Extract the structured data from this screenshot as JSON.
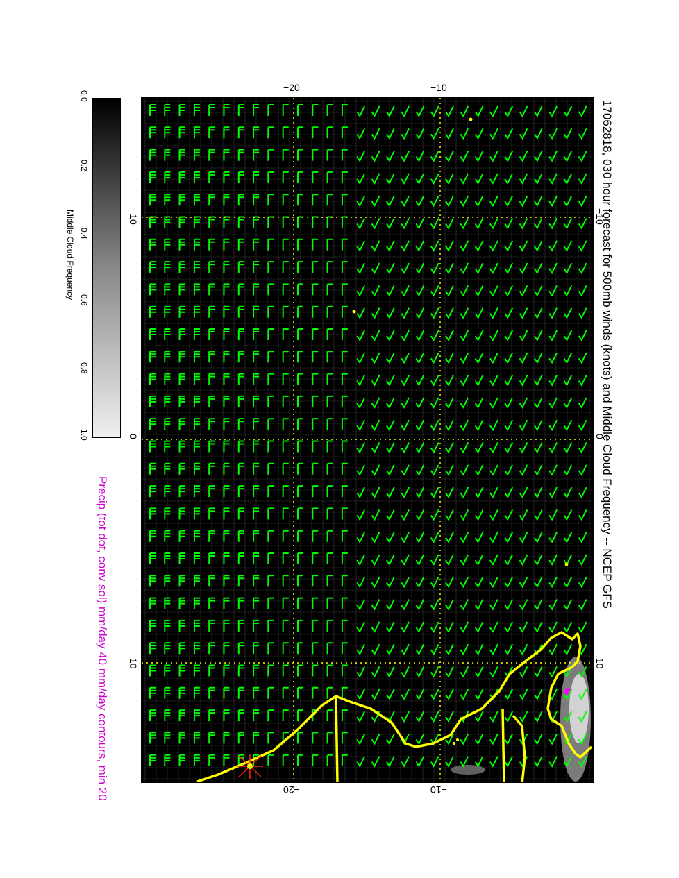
{
  "title": "17062818, 030 hour forecast for 500mb winds (knots) and Middle Cloud Frequency -- NCEP GFS",
  "stamp": "17062818",
  "precip_caption": "Precip (tot dot, conv sol) mm/day 40 mm/day contours, min 20",
  "colorbar": {
    "label": "Middle Cloud Frequency",
    "ticks": [
      "0.0",
      "0.2",
      "0.4",
      "0.6",
      "0.8",
      "1.0"
    ]
  },
  "axes": {
    "left_ticks": [
      "−10",
      "0",
      "10"
    ],
    "right_ticks": [
      "−10",
      "0",
      "10"
    ],
    "top_ticks": [
      "−20",
      "−10"
    ],
    "bottom_ticks": [
      "−20",
      "−10"
    ]
  },
  "colors": {
    "barb": "#00ff00",
    "coast": "#ffff00",
    "grid": "#ffff00",
    "stamp": "#ff00ff",
    "background": "#000000"
  },
  "icons": [
    "wind-barb-icon",
    "star-marker-icon"
  ]
}
